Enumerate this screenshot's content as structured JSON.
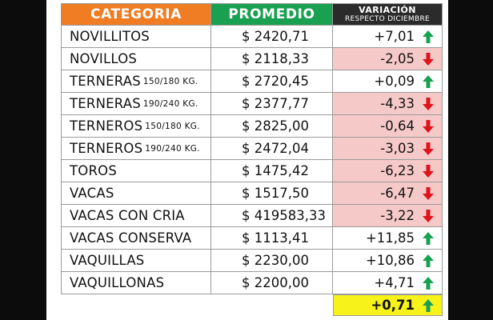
{
  "header": {
    "categoria": "CATEGORIA",
    "promedio": "PROMEDIO",
    "variacion": "VARIACIÓN",
    "variacion_sub": "RESPECTO DICIEMBRE"
  },
  "rows": [
    {
      "cat": "NOVILLITOS",
      "sub": "",
      "prom": "$ 2420,71",
      "var": "+7,01",
      "trend": "up"
    },
    {
      "cat": "NOVILLOS",
      "sub": "",
      "prom": "$ 2118,33",
      "var": "-2,05",
      "trend": "down"
    },
    {
      "cat": "TERNERAS",
      "sub": "150/180 KG.",
      "prom": "$ 2720,45",
      "var": "+0,09",
      "trend": "up"
    },
    {
      "cat": "TERNERAS",
      "sub": "190/240 KG.",
      "prom": "$ 2377,77",
      "var": "-4,33",
      "trend": "down"
    },
    {
      "cat": "TERNEROS",
      "sub": "150/180 KG.",
      "prom": "$ 2825,00",
      "var": "-0,64",
      "trend": "down"
    },
    {
      "cat": "TERNEROS",
      "sub": "190/240 KG.",
      "prom": "$ 2472,04",
      "var": "-3,03",
      "trend": "down"
    },
    {
      "cat": "TOROS",
      "sub": "",
      "prom": "$ 1475,42",
      "var": "-6,23",
      "trend": "down"
    },
    {
      "cat": "VACAS",
      "sub": "",
      "prom": "$ 1517,50",
      "var": "-6,47",
      "trend": "down"
    },
    {
      "cat": "VACAS CON CRIA",
      "sub": "",
      "prom": "$ 419583,33",
      "var": "-3,22",
      "trend": "down"
    },
    {
      "cat": "VACAS CONSERVA",
      "sub": "",
      "prom": "$ 1113,41",
      "var": "+11,85",
      "trend": "up"
    },
    {
      "cat": "VAQUILLAS",
      "sub": "",
      "prom": "$ 2230,00",
      "var": "+10,86",
      "trend": "up"
    },
    {
      "cat": "VAQUILLONAS",
      "sub": "",
      "prom": "$ 2200,00",
      "var": "+4,71",
      "trend": "up"
    }
  ],
  "total": {
    "var": "+0,71",
    "trend": "up"
  },
  "colors": {
    "categoria_header": "#f07d24",
    "promedio_header": "#1aa051",
    "variacion_header": "#2b2b2b",
    "negative_bg": "#f6c9c9",
    "total_bg": "#f7f21a",
    "arrow_up": "#1aa051",
    "arrow_down": "#e0131a"
  },
  "icons": {
    "up": "arrow-up-icon",
    "down": "arrow-down-icon"
  }
}
